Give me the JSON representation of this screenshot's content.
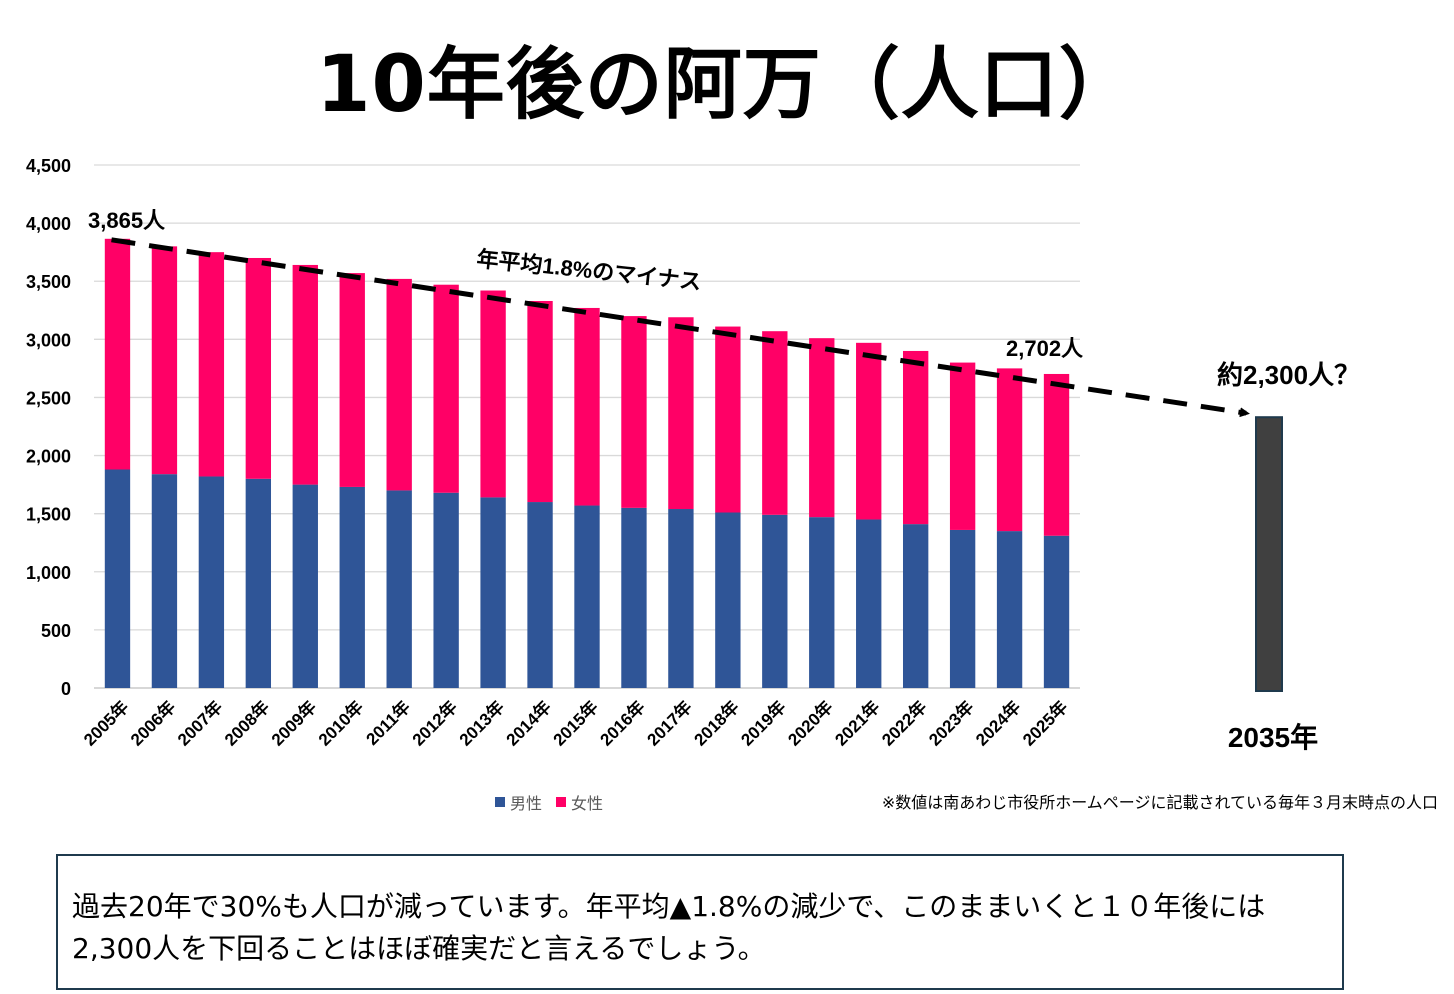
{
  "title": "10年後の阿万（人口）",
  "chart_data": {
    "type": "bar",
    "stacked": true,
    "categories": [
      "2005年",
      "2006年",
      "2007年",
      "2008年",
      "2009年",
      "2010年",
      "2011年",
      "2012年",
      "2013年",
      "2014年",
      "2015年",
      "2016年",
      "2017年",
      "2018年",
      "2019年",
      "2020年",
      "2021年",
      "2022年",
      "2023年",
      "2024年",
      "2025年"
    ],
    "series": [
      {
        "name": "男性",
        "color": "#2f5597",
        "values": [
          1880,
          1840,
          1820,
          1800,
          1750,
          1730,
          1700,
          1680,
          1640,
          1600,
          1570,
          1550,
          1540,
          1510,
          1490,
          1470,
          1450,
          1410,
          1360,
          1350,
          1310
        ]
      },
      {
        "name": "女性",
        "color": "#ff0066",
        "values": [
          1985,
          1960,
          1930,
          1900,
          1890,
          1840,
          1820,
          1790,
          1780,
          1730,
          1700,
          1650,
          1650,
          1600,
          1580,
          1540,
          1520,
          1490,
          1440,
          1400,
          1392
        ]
      }
    ],
    "projection": {
      "category": "2035年",
      "value": 2330,
      "color": "#404040",
      "label": "約2,300人？"
    },
    "y_ticks": [
      "0",
      "500",
      "1,000",
      "1,500",
      "2,000",
      "2,500",
      "3,000",
      "3,500",
      "4,000",
      "4,500"
    ],
    "ylim": [
      0,
      4500
    ],
    "grid": true,
    "legend_position": "bottom",
    "annotations": {
      "start_label": "3,865人",
      "end_label": "2,702人",
      "trend_label": "年平均1.8%のマイナス"
    }
  },
  "source_note": "※数値は南あわじ市役所ホームページに記載されている毎年３月末時点の人口",
  "summary_text": "過去20年で30%も人口が減っています。年平均▲1.8%の減少で、このままいくと１０年後には2,300人を下回ることはほぼ確実だと言えるでしょう。"
}
